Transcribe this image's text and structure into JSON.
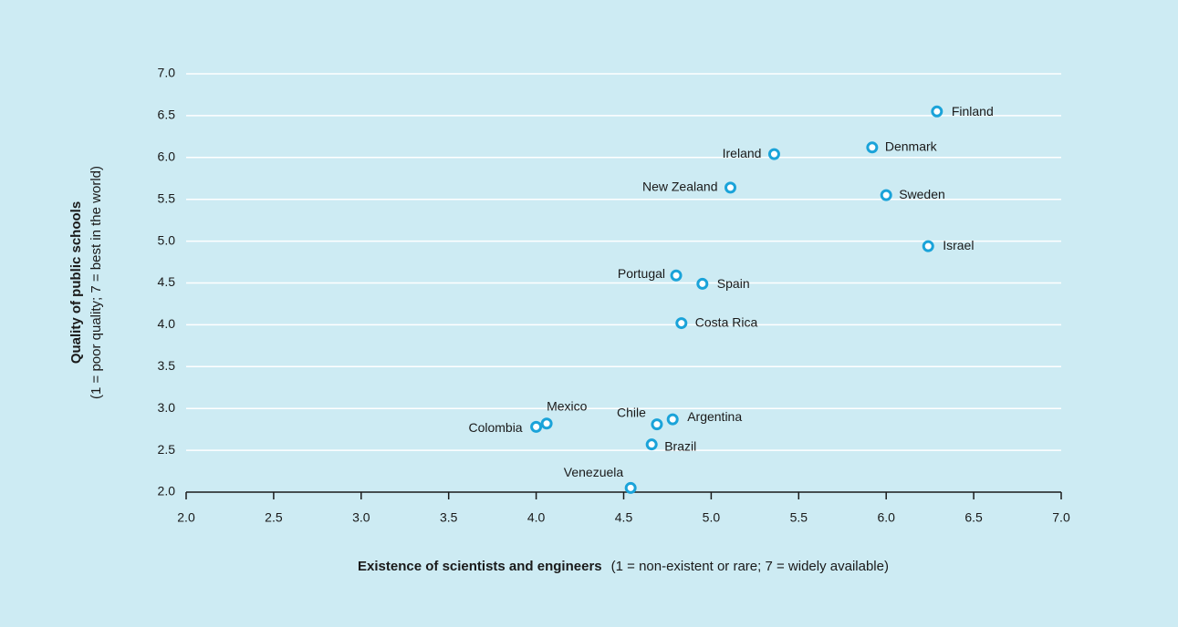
{
  "chart_data": {
    "type": "scatter",
    "x_label": "Existence of scientists and engineers",
    "x_label_note": "(1 = non-existent or rare; 7 = widely available)",
    "y_label": "Quality of public schools",
    "y_label_note": "(1 = poor quality; 7 = best in the world)",
    "names": [
      "Finland",
      "Denmark",
      "Ireland",
      "New Zealand",
      "Sweden",
      "Israel",
      "Portugal",
      "Spain",
      "Costa Rica",
      "Mexico",
      "Colombia",
      "Chile",
      "Argentina",
      "Brazil",
      "Venezuela"
    ],
    "x": [
      6.29,
      5.92,
      5.36,
      5.11,
      6.0,
      6.24,
      4.8,
      4.95,
      4.83,
      4.06,
      4.0,
      4.69,
      4.78,
      4.66,
      4.54
    ],
    "values": [
      6.55,
      6.12,
      6.04,
      5.64,
      5.55,
      4.94,
      4.59,
      4.49,
      4.02,
      2.82,
      2.78,
      2.81,
      2.87,
      2.57,
      2.05
    ],
    "color": "#1aa3d9",
    "xlim": [
      2.0,
      7.0
    ],
    "ylim": [
      2.0,
      7.0
    ],
    "xticks": [
      {
        "value": 2,
        "label": "2.0"
      },
      {
        "value": 2.5,
        "label": "2.5"
      },
      {
        "value": 3,
        "label": "3.0"
      },
      {
        "value": 3.5,
        "label": "3.5"
      },
      {
        "value": 4,
        "label": "4.0"
      },
      {
        "value": 4.5,
        "label": "4.5"
      },
      {
        "value": 5,
        "label": "5.0"
      },
      {
        "value": 5.5,
        "label": "5.5"
      },
      {
        "value": 6,
        "label": "6.0"
      },
      {
        "value": 6.5,
        "label": "6.5"
      },
      {
        "value": 7,
        "label": "7.0"
      }
    ],
    "yticks": [
      {
        "value": 2,
        "label": "2.0"
      },
      {
        "value": 2.5,
        "label": "2.5"
      },
      {
        "value": 3,
        "label": "3.0"
      },
      {
        "value": 3.5,
        "label": "3.5"
      },
      {
        "value": 4,
        "label": "4.0"
      },
      {
        "value": 4.5,
        "label": "4.5"
      },
      {
        "value": 5,
        "label": "5.0"
      },
      {
        "value": 5.5,
        "label": "5.5"
      },
      {
        "value": 6,
        "label": "6.0"
      },
      {
        "value": 6.5,
        "label": "6.5"
      },
      {
        "value": 7,
        "label": "7.0"
      }
    ],
    "grid": true
  }
}
